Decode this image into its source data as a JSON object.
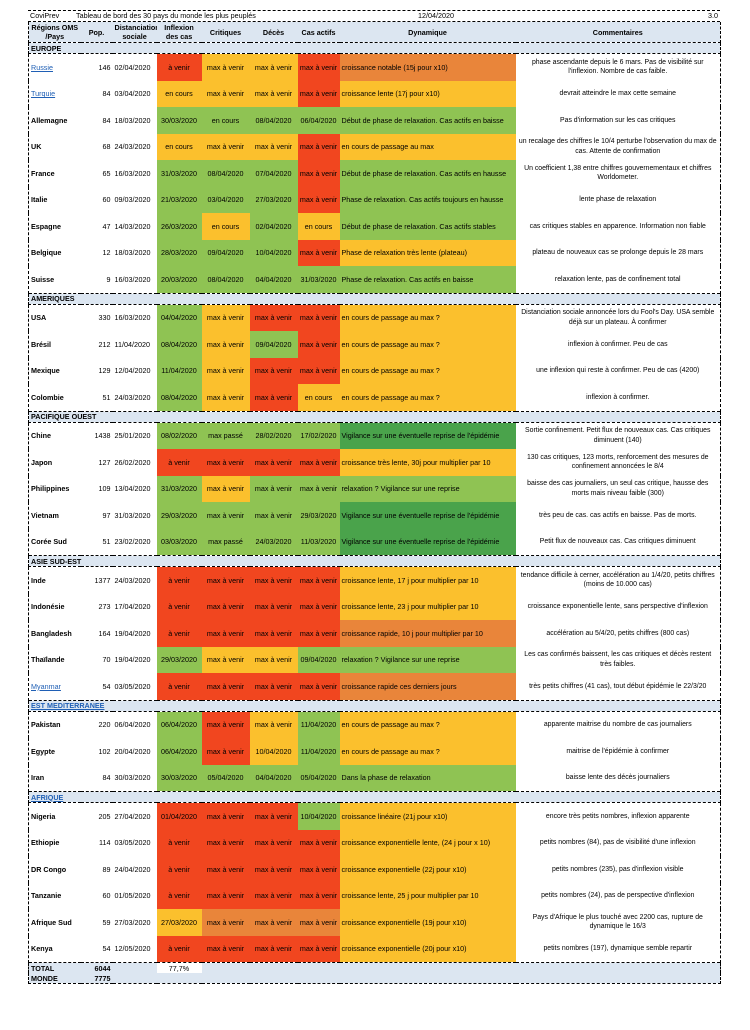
{
  "title": {
    "left": "CoviPrev",
    "main": "Tableau de bord des 30 pays du monde les plus peuplés",
    "date": "12/04/2020",
    "version": "3.0"
  },
  "colors": {
    "green": "#8fc353",
    "dgreen": "#4aa34b",
    "yellow": "#fbc02d",
    "orange": "#e9853a",
    "red": "#f1461f",
    "header": "#dce6f1",
    "link": "#1f5fb5"
  },
  "headers": {
    "region": "Régions OMS /Pays",
    "pop": "Pop.",
    "distancing": "Distanciation sociale",
    "inflexion": "Inflexion des cas",
    "critical": "Critiques",
    "deaths": "Décès",
    "active": "Cas actifs",
    "dynamic": "Dynamique",
    "comments": "Commentaires"
  },
  "regions": [
    {
      "name": "EUROPE",
      "link": false,
      "rows": [
        {
          "country": "Russie",
          "link": true,
          "pop": "146",
          "dist": "02/04/2020",
          "inf": "à venir",
          "crit": "max à venir",
          "dec": "max à venir",
          "act": "max à venir",
          "dyn": "croissance notable (15j pour x10)",
          "com": "phase ascendante depuis le 6 mars. Pas de visibilité sur l'inflexion. Nombre de cas faible.",
          "c": [
            "red",
            "yellow",
            "yellow",
            "red",
            "orange"
          ]
        },
        {
          "country": "Turquie",
          "link": true,
          "pop": "84",
          "dist": "03/04/2020",
          "inf": "en cours",
          "crit": "max à venir",
          "dec": "max à venir",
          "act": "max à venir",
          "dyn": "croissance lente (17j pour x10)",
          "com": "devrait atteindre le max cette semaine",
          "c": [
            "yellow",
            "yellow",
            "yellow",
            "red",
            "yellow"
          ]
        },
        {
          "country": "Allemagne",
          "link": false,
          "pop": "84",
          "dist": "18/03/2020",
          "inf": "30/03/2020",
          "crit": "en cours",
          "dec": "08/04/2020",
          "act": "06/04/2020",
          "dyn": "Début de phase de relaxation. Cas actifs en baisse",
          "com": "Pas d'information sur les cas critiques",
          "c": [
            "green",
            "green",
            "green",
            "green",
            "green"
          ]
        },
        {
          "country": "UK",
          "link": false,
          "pop": "68",
          "dist": "24/03/2020",
          "inf": "en cours",
          "crit": "max à venir",
          "dec": "max à venir",
          "act": "max à venir",
          "dyn": "en cours de passage au max",
          "com": "un recalage des chiffres le 10/4 perturbe l'observation du max de cas. Attente de confirmation",
          "c": [
            "yellow",
            "yellow",
            "yellow",
            "red",
            "yellow"
          ]
        },
        {
          "country": "France",
          "link": false,
          "pop": "65",
          "dist": "16/03/2020",
          "inf": "31/03/2020",
          "crit": "08/04/2020",
          "dec": "07/04/2020",
          "act": "max à venir",
          "dyn": "Début de phase de relaxation. Cas actifs en hausse",
          "com": "Un coefficient 1,38 entre chiffres gouvernementaux et chiffres Worldometer.",
          "c": [
            "green",
            "green",
            "green",
            "red",
            "green"
          ]
        },
        {
          "country": "Italie",
          "link": false,
          "pop": "60",
          "dist": "09/03/2020",
          "inf": "21/03/2020",
          "crit": "03/04/2020",
          "dec": "27/03/2020",
          "act": "max à venir",
          "dyn": "Phase de relaxation. Cas actifs toujours en hausse",
          "com": "lente phase de relaxation",
          "c": [
            "green",
            "green",
            "green",
            "red",
            "green"
          ]
        },
        {
          "country": "Espagne",
          "link": false,
          "pop": "47",
          "dist": "14/03/2020",
          "inf": "26/03/2020",
          "crit": "en cours",
          "dec": "02/04/2020",
          "act": "en cours",
          "dyn": "Début de phase de relaxation. Cas actifs stables",
          "com": "cas critiques stables en apparence. Information non fiable",
          "c": [
            "green",
            "yellow",
            "green",
            "yellow",
            "green"
          ]
        },
        {
          "country": "Belgique",
          "link": false,
          "pop": "12",
          "dist": "18/03/2020",
          "inf": "28/03/2020",
          "crit": "09/04/2020",
          "dec": "10/04/2020",
          "act": "max à venir",
          "dyn": "Phase de relaxation très lente (plateau)",
          "com": "plateau de nouveaux cas se prolonge depuis le 28 mars",
          "c": [
            "green",
            "green",
            "green",
            "red",
            "yellow"
          ]
        },
        {
          "country": "Suisse",
          "link": false,
          "pop": "9",
          "dist": "16/03/2020",
          "inf": "20/03/2020",
          "crit": "08/04/2020",
          "dec": "04/04/2020",
          "act": "31/03/2020",
          "dyn": "Phase de relaxation. Cas actifs en baisse",
          "com": "relaxation lente, pas de confinement total",
          "c": [
            "green",
            "green",
            "green",
            "green",
            "green"
          ]
        }
      ]
    },
    {
      "name": "AMERIQUES",
      "link": false,
      "rows": [
        {
          "country": "USA",
          "link": false,
          "pop": "330",
          "dist": "16/03/2020",
          "inf": "04/04/2020",
          "crit": "max à venir",
          "dec": "max à venir",
          "act": "max à venir",
          "dyn": "en cours de passage au max ?",
          "com": "Distanciation sociale annoncée lors du Fool's Day. USA semble déjà sur un plateau. À confirmer",
          "c": [
            "green",
            "yellow",
            "red",
            "red",
            "yellow"
          ]
        },
        {
          "country": "Brésil",
          "link": false,
          "pop": "212",
          "dist": "11/04/2020",
          "inf": "08/04/2020",
          "crit": "max à venir",
          "dec": "09/04/2020",
          "act": "max à venir",
          "dyn": "en cours de passage au max ?",
          "com": "inflexion à confirmer. Peu de cas",
          "c": [
            "green",
            "yellow",
            "green",
            "red",
            "yellow"
          ]
        },
        {
          "country": "Mexique",
          "link": false,
          "pop": "129",
          "dist": "12/04/2020",
          "inf": "11/04/2020",
          "crit": "max à venir",
          "dec": "max à venir",
          "act": "max à venir",
          "dyn": "en cours de passage au max ?",
          "com": "une inflexion qui reste à confirmer. Peu de cas (4200)",
          "c": [
            "green",
            "yellow",
            "red",
            "red",
            "yellow"
          ]
        },
        {
          "country": "Colombie",
          "link": false,
          "pop": "51",
          "dist": "24/03/2020",
          "inf": "08/04/2020",
          "crit": "max à venir",
          "dec": "max à venir",
          "act": "en cours",
          "dyn": "en cours de passage au max ?",
          "com": "inflexion à confirmer.",
          "c": [
            "green",
            "yellow",
            "red",
            "yellow",
            "yellow"
          ]
        }
      ]
    },
    {
      "name": "PACIFIQUE OUEST",
      "link": false,
      "rows": [
        {
          "country": "Chine",
          "link": false,
          "pop": "1438",
          "dist": "25/01/2020",
          "inf": "08/02/2020",
          "crit": "max passé",
          "dec": "28/02/2020",
          "act": "17/02/2020",
          "dyn": "Vigilance sur une éventuelle reprise de l'épidémie",
          "com": "Sortie confinement. Petit flux de nouveaux cas. Cas critiques diminuent (140)",
          "c": [
            "green",
            "green",
            "green",
            "green",
            "dgreen"
          ]
        },
        {
          "country": "Japon",
          "link": false,
          "pop": "127",
          "dist": "26/02/2020",
          "inf": "à venir",
          "crit": "max à venir",
          "dec": "max à venir",
          "act": "max à venir",
          "dyn": "croissance très lente, 30j pour multiplier par 10",
          "com": "130 cas critiques, 123 morts, renforcement des mesures de confinement annoncées le 8/4",
          "c": [
            "red",
            "red",
            "red",
            "red",
            "yellow"
          ]
        },
        {
          "country": "Philippines",
          "link": false,
          "pop": "109",
          "dist": "13/04/2020",
          "inf": "31/03/2020",
          "crit": "max à venir",
          "dec": "max à venir",
          "act": "max à venir",
          "dyn": "relaxation ? Vigilance sur une reprise",
          "com": "baisse des cas journaliers, un seul cas critique, hausse des morts mais niveau faible (300)",
          "c": [
            "green",
            "yellow",
            "green",
            "green",
            "green"
          ]
        },
        {
          "country": "Vietnam",
          "link": false,
          "pop": "97",
          "dist": "31/03/2020",
          "inf": "29/03/2020",
          "crit": "max à venir",
          "dec": "max à venir",
          "act": "29/03/2020",
          "dyn": "Vigilance sur une éventuelle reprise de l'épidémie",
          "com": "très peu de cas. cas actifs en baisse. Pas de morts.",
          "c": [
            "green",
            "green",
            "green",
            "green",
            "dgreen"
          ]
        },
        {
          "country": "Corée Sud",
          "link": false,
          "pop": "51",
          "dist": "23/02/2020",
          "inf": "03/03/2020",
          "crit": "max passé",
          "dec": "24/03/2020",
          "act": "11/03/2020",
          "dyn": "Vigilance sur une éventuelle reprise de l'épidémie",
          "com": "Petit flux de nouveaux cas. Cas critiques diminuent",
          "c": [
            "green",
            "green",
            "green",
            "green",
            "dgreen"
          ]
        }
      ]
    },
    {
      "name": "ASIE SUD-EST",
      "link": false,
      "rows": [
        {
          "country": "Inde",
          "link": false,
          "pop": "1377",
          "dist": "24/03/2020",
          "inf": "à venir",
          "crit": "max à venir",
          "dec": "max à venir",
          "act": "max à venir",
          "dyn": "croissance lente, 17 j pour multiplier par 10",
          "com": "tendance difficile à cerner, accélération au 1/4/20, petits chiffres (moins de 10.000 cas)",
          "c": [
            "red",
            "red",
            "red",
            "red",
            "yellow"
          ]
        },
        {
          "country": "Indonésie",
          "link": false,
          "pop": "273",
          "dist": "17/04/2020",
          "inf": "à venir",
          "crit": "max à venir",
          "dec": "max à venir",
          "act": "max à venir",
          "dyn": "croissance lente, 23 j pour multiplier par 10",
          "com": "croissance exponentielle lente, sans perspective d'inflexion",
          "c": [
            "red",
            "red",
            "red",
            "red",
            "yellow"
          ]
        },
        {
          "country": "Bangladesh",
          "link": false,
          "pop": "164",
          "dist": "19/04/2020",
          "inf": "à venir",
          "crit": "max à venir",
          "dec": "max à venir",
          "act": "max à venir",
          "dyn": "croissance rapide, 10 j pour multiplier par 10",
          "com": "accélération au 5/4/20, petits chiffres (800 cas)",
          "c": [
            "red",
            "red",
            "red",
            "red",
            "orange"
          ]
        },
        {
          "country": "Thaïlande",
          "link": false,
          "pop": "70",
          "dist": "19/04/2020",
          "inf": "29/03/2020",
          "crit": "max à venir",
          "dec": "max à venir",
          "act": "09/04/2020",
          "dyn": "relaxation ? Vigilance sur une reprise",
          "com": "Les cas confirmés baissent, les cas critiques et décès restent très faibles.",
          "c": [
            "green",
            "yellow",
            "yellow",
            "green",
            "green"
          ]
        },
        {
          "country": "Myanmar",
          "link": true,
          "pop": "54",
          "dist": "03/05/2020",
          "inf": "à venir",
          "crit": "max à venir",
          "dec": "max à venir",
          "act": "max à venir",
          "dyn": "croissance rapide ces derniers jours",
          "com": "très petits chiffres (41 cas), tout début épidémie le 22/3/20",
          "c": [
            "red",
            "red",
            "red",
            "red",
            "orange"
          ]
        }
      ]
    },
    {
      "name": "EST MEDITERRANEE",
      "link": true,
      "rows": [
        {
          "country": "Pakistan",
          "link": false,
          "pop": "220",
          "dist": "06/04/2020",
          "inf": "06/04/2020",
          "crit": "max à venir",
          "dec": "max à venir",
          "act": "11/04/2020",
          "dyn": "en cours de passage au max ?",
          "com": "apparente maitrise du nombre de cas journaliers",
          "c": [
            "green",
            "red",
            "yellow",
            "green",
            "yellow"
          ]
        },
        {
          "country": "Egypte",
          "link": false,
          "pop": "102",
          "dist": "20/04/2020",
          "inf": "06/04/2020",
          "crit": "max à venir",
          "dec": "10/04/2020",
          "act": "11/04/2020",
          "dyn": "en cours de passage au max ?",
          "com": "maitrise de l'épidémie à confirmer",
          "c": [
            "green",
            "red",
            "yellow",
            "green",
            "yellow"
          ]
        },
        {
          "country": "Iran",
          "link": false,
          "pop": "84",
          "dist": "30/03/2020",
          "inf": "30/03/2020",
          "crit": "05/04/2020",
          "dec": "04/04/2020",
          "act": "05/04/2020",
          "dyn": "Dans la phase de relaxation",
          "com": "baisse lente des décès journaliers",
          "c": [
            "green",
            "green",
            "green",
            "green",
            "green"
          ]
        }
      ]
    },
    {
      "name": "AFRIQUE",
      "link": true,
      "rows": [
        {
          "country": "Nigeria",
          "link": false,
          "pop": "205",
          "dist": "27/04/2020",
          "inf": "01/04/2020",
          "crit": "max à venir",
          "dec": "max à venir",
          "act": "10/04/2020",
          "dyn": "croissance linéaire (21j pour x10)",
          "com": "encore très petits nombres, inflexion apparente",
          "c": [
            "red",
            "red",
            "red",
            "green",
            "yellow"
          ]
        },
        {
          "country": "Ethiopie",
          "link": false,
          "pop": "114",
          "dist": "03/05/2020",
          "inf": "à venir",
          "crit": "max à venir",
          "dec": "max à venir",
          "act": "max à venir",
          "dyn": "croissance exponentielle lente, (24 j pour x 10)",
          "com": "petits nombres (84), pas de visibilité d'une inflexion",
          "c": [
            "red",
            "red",
            "red",
            "red",
            "yellow"
          ]
        },
        {
          "country": "DR Congo",
          "link": false,
          "pop": "89",
          "dist": "24/04/2020",
          "inf": "à venir",
          "crit": "max à venir",
          "dec": "max à venir",
          "act": "max à venir",
          "dyn": "croissance exponentielle (22j pour x10)",
          "com": "petits nombres (235), pas d'inflexion visible",
          "c": [
            "red",
            "red",
            "red",
            "red",
            "yellow"
          ]
        },
        {
          "country": "Tanzanie",
          "link": false,
          "pop": "60",
          "dist": "01/05/2020",
          "inf": "à venir",
          "crit": "max à venir",
          "dec": "max à venir",
          "act": "max à venir",
          "dyn": "croissance lente, 25 j pour multiplier par 10",
          "com": "petits nombres (24), pas de perspective d'inflexion",
          "c": [
            "red",
            "red",
            "red",
            "red",
            "yellow"
          ]
        },
        {
          "country": "Afrique Sud",
          "link": false,
          "pop": "59",
          "dist": "27/03/2020",
          "inf": "27/03/2020",
          "crit": "max à venir",
          "dec": "max à venir",
          "act": "max à venir",
          "dyn": "croissance exponentielle (19j pour x10)",
          "com": "Pays d'Afrique le plus touché avec 2200 cas, rupture de dynamique le 16/3",
          "c": [
            "yellow",
            "orange",
            "orange",
            "orange",
            "yellow"
          ]
        },
        {
          "country": "Kenya",
          "link": false,
          "pop": "54",
          "dist": "12/05/2020",
          "inf": "à venir",
          "crit": "max à venir",
          "dec": "max à venir",
          "act": "max à venir",
          "dyn": "croissance exponentielle (20j pour x10)",
          "com": "petits nombres (197), dynamique semble repartir",
          "c": [
            "red",
            "red",
            "red",
            "red",
            "yellow"
          ]
        }
      ]
    }
  ],
  "totals": {
    "total_label": "TOTAL",
    "total_pop": "6044",
    "total_pct": "77,7%",
    "world_label": "MONDE",
    "world_pop": "7775"
  }
}
